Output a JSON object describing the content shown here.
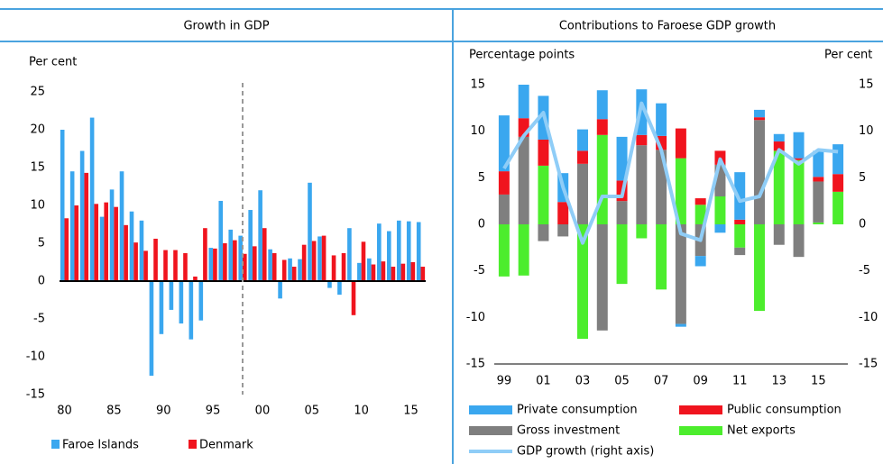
{
  "chart_data": [
    {
      "type": "bar",
      "title": "Growth in GDP",
      "y_label": "Per cent",
      "x": [
        1980,
        1981,
        1982,
        1983,
        1984,
        1985,
        1986,
        1987,
        1988,
        1989,
        1990,
        1991,
        1992,
        1993,
        1994,
        1995,
        1996,
        1997,
        1998,
        1999,
        2000,
        2001,
        2002,
        2003,
        2004,
        2005,
        2006,
        2007,
        2008,
        2009,
        2010,
        2011,
        2012,
        2013,
        2014,
        2015,
        2016
      ],
      "series": [
        {
          "name": "Faroe Islands",
          "color": "#3aa7ef",
          "values": [
            20,
            14.5,
            17.2,
            21.6,
            8.5,
            12.1,
            14.5,
            9.2,
            8,
            -12.5,
            -7,
            -3.8,
            -5.6,
            -7.7,
            -5.2,
            4.4,
            10.6,
            6.8,
            6,
            9.4,
            12,
            4.2,
            -2.3,
            3,
            2.9,
            13,
            5.9,
            -0.9,
            -1.8,
            7,
            2.4,
            3,
            7.6,
            6.6,
            8,
            7.9,
            7.8
          ]
        },
        {
          "name": "Denmark",
          "color": "#f0141e",
          "values": [
            8.3,
            10,
            14.3,
            10.2,
            10.4,
            9.8,
            7.4,
            5.1,
            4,
            5.6,
            4.1,
            4.1,
            3.7,
            0.6,
            7,
            4.3,
            5,
            5.4,
            3.6,
            4.6,
            7,
            3.7,
            2.8,
            1.9,
            4.8,
            5.3,
            6,
            3.4,
            3.7,
            -4.5,
            5.2,
            2.2,
            2.6,
            1.9,
            2.3,
            2.5,
            1.9
          ]
        }
      ],
      "xlim": [
        1979.5,
        2016.5
      ],
      "xticks": [
        {
          "value": 1980,
          "label": "80"
        },
        {
          "value": 1985,
          "label": "85"
        },
        {
          "value": 1990,
          "label": "90"
        },
        {
          "value": 1995,
          "label": "95"
        },
        {
          "value": 2000,
          "label": "00"
        },
        {
          "value": 2005,
          "label": "05"
        },
        {
          "value": 2010,
          "label": "10"
        },
        {
          "value": 2015,
          "label": "15"
        }
      ],
      "ylim": [
        -15,
        25
      ],
      "yticks": [
        -15,
        -10,
        -5,
        0,
        5,
        10,
        15,
        20,
        25
      ],
      "vline": 1998,
      "grid": false
    },
    {
      "type": "stacked_bar",
      "title": "Contributions to Faroese GDP growth",
      "y_label": "Percentage points",
      "y2_label": "Per cent",
      "x": [
        1999,
        2000,
        2001,
        2002,
        2003,
        2004,
        2005,
        2006,
        2007,
        2008,
        2009,
        2010,
        2011,
        2012,
        2013,
        2014,
        2015,
        2016
      ],
      "series": [
        {
          "name": "Private consumption",
          "color": "#3aa7ef",
          "values": [
            6,
            3.6,
            4.7,
            3.1,
            2.3,
            3.1,
            4.7,
            4.9,
            3.5,
            -0.3,
            -1.1,
            -0.9,
            5.1,
            0.8,
            0.8,
            2.8,
            2.8,
            3.2
          ]
        },
        {
          "name": "Public consumption",
          "color": "#f0141e",
          "values": [
            2.5,
            2,
            2.8,
            2.4,
            1.4,
            1.7,
            2.2,
            1.1,
            1.5,
            3.2,
            0.7,
            1.5,
            0.5,
            0.3,
            1,
            0.2,
            0.5,
            1.9
          ]
        },
        {
          "name": "Gross investment",
          "color": "#7f7f7f",
          "values": [
            3.2,
            9.4,
            -1.8,
            -1.3,
            6.5,
            -11.4,
            2.5,
            8.5,
            8,
            -10.7,
            -3.4,
            3.4,
            -0.8,
            11.2,
            -2.2,
            -3.5,
            4.4,
            0
          ]
        },
        {
          "name": "Net exports",
          "color": "#4ced2d",
          "values": [
            -5.6,
            -5.5,
            6.3,
            0,
            -12.3,
            9.6,
            -6.4,
            -1.5,
            -7,
            7.1,
            2.1,
            3,
            -2.5,
            -9.3,
            7.9,
            6.9,
            0.2,
            3.5
          ]
        },
        {
          "name": "GDP growth (right axis)",
          "color": "#8fcdf7",
          "type": "line",
          "axis": "y2",
          "values": [
            6,
            9.5,
            12,
            4,
            -2,
            3,
            3,
            13,
            8,
            -1,
            -1.7,
            7,
            2.5,
            3,
            8,
            6.5,
            8,
            7.8
          ]
        }
      ],
      "xlim": [
        1998.5,
        2016.5
      ],
      "xticks": [
        {
          "value": 1999,
          "label": "99"
        },
        {
          "value": 2001,
          "label": "01"
        },
        {
          "value": 2003,
          "label": "03"
        },
        {
          "value": 2005,
          "label": "05"
        },
        {
          "value": 2007,
          "label": "07"
        },
        {
          "value": 2009,
          "label": "09"
        },
        {
          "value": 2011,
          "label": "11"
        },
        {
          "value": 2013,
          "label": "13"
        },
        {
          "value": 2015,
          "label": "15"
        }
      ],
      "ylim": [
        -15,
        15
      ],
      "yticks": [
        -15,
        -10,
        -5,
        0,
        5,
        10,
        15
      ],
      "y2lim": [
        -15,
        15
      ],
      "y2ticks": [
        -15,
        -10,
        -5,
        0,
        5,
        10,
        15
      ],
      "grid": false
    }
  ]
}
